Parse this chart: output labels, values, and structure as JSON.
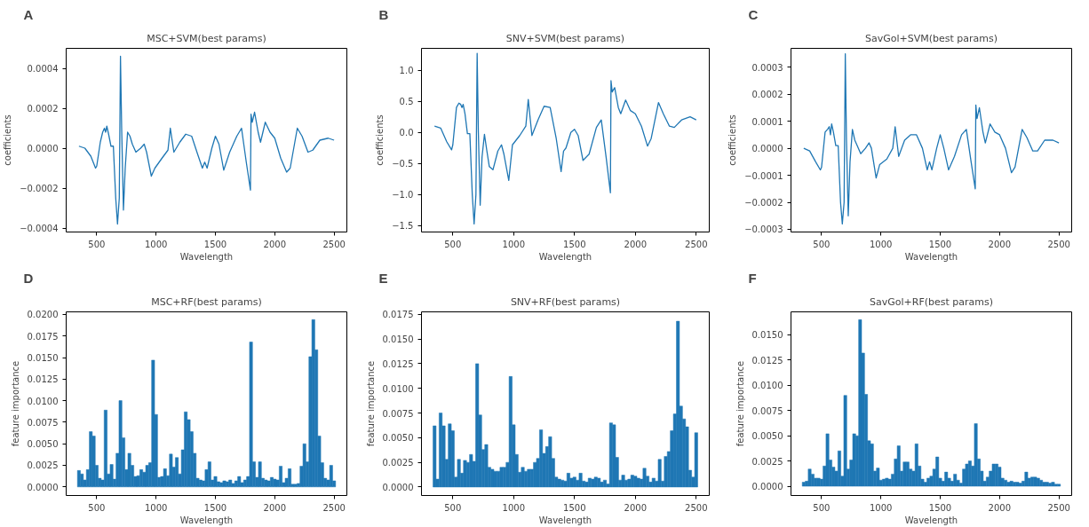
{
  "chart_data": [
    {
      "type": "line",
      "title": "MSC+SVM(best params)",
      "xlabel": "Wavelength",
      "ylabel": "coefficients",
      "annotations": [
        "A"
      ],
      "grid": false,
      "xlim": [
        242.5,
        2607.5
      ],
      "xticks": [
        500,
        1000,
        1500,
        2000,
        2500
      ],
      "ylim": [
        -0.00042,
        0.0005
      ],
      "yticks": [
        {
          "value": -0.0004,
          "label": "−0.0004"
        },
        {
          "value": -0.0002,
          "label": "−0.0002"
        },
        {
          "value": 0,
          "label": "0.0000"
        },
        {
          "value": 0.0002,
          "label": "0.0002"
        },
        {
          "value": 0.0004,
          "label": "0.0004"
        }
      ],
      "x": [
        350,
        400,
        450,
        490,
        500,
        530,
        550,
        565,
        575,
        585,
        600,
        620,
        640,
        660,
        675,
        690,
        700,
        710,
        725,
        740,
        760,
        780,
        800,
        830,
        870,
        900,
        920,
        960,
        990,
        1050,
        1100,
        1120,
        1150,
        1200,
        1250,
        1300,
        1350,
        1390,
        1410,
        1430,
        1470,
        1500,
        1530,
        1570,
        1620,
        1680,
        1720,
        1760,
        1795,
        1800,
        1810,
        1830,
        1860,
        1880,
        1920,
        1960,
        2000,
        2050,
        2100,
        2130,
        2190,
        2230,
        2280,
        2320,
        2380,
        2450,
        2500
      ],
      "series": [
        {
          "color": "#1f77b4",
          "values": [
            1e-05,
            0.0,
            -4e-05,
            -0.0001,
            -9e-05,
            3e-05,
            8e-05,
            0.0001,
            8e-05,
            0.00011,
            7e-05,
            1e-05,
            1e-05,
            -0.00025,
            -0.00038,
            -0.00025,
            0.00046,
            0.0001,
            -0.00031,
            -0.0001,
            8e-05,
            6e-05,
            2e-05,
            -2e-05,
            0.0,
            2e-05,
            -2e-05,
            -0.00014,
            -0.0001,
            -5e-05,
            -1e-05,
            0.0001,
            -2e-05,
            3e-05,
            7e-05,
            6e-05,
            -3e-05,
            -0.0001,
            -7e-05,
            -0.0001,
            0.0,
            6e-05,
            2e-05,
            -0.00011,
            -2e-05,
            6e-05,
            0.0001,
            -7e-05,
            -0.00021,
            0.00017,
            0.00013,
            0.00018,
            8e-05,
            3e-05,
            0.00013,
            8e-05,
            5e-05,
            -5e-05,
            -0.00012,
            -0.0001,
            0.0001,
            6e-05,
            -2e-05,
            -1e-05,
            4e-05,
            5e-05,
            4e-05
          ]
        }
      ]
    },
    {
      "type": "line",
      "title": "SNV+SVM(best params)",
      "xlabel": "Wavelength",
      "ylabel": "coefficients",
      "annotations": [
        "B"
      ],
      "grid": false,
      "xlim": [
        242.5,
        2607.5
      ],
      "xticks": [
        500,
        1000,
        1500,
        2000,
        2500
      ],
      "ylim": [
        -1.6,
        1.35
      ],
      "yticks": [
        {
          "value": -1.5,
          "label": "−1.5"
        },
        {
          "value": -1.0,
          "label": "−1.0"
        },
        {
          "value": -0.5,
          "label": "−0.5"
        },
        {
          "value": 0,
          "label": "0.0"
        },
        {
          "value": 0.5,
          "label": "0.5"
        },
        {
          "value": 1.0,
          "label": "1.0"
        }
      ],
      "x": [
        350,
        400,
        450,
        490,
        500,
        530,
        550,
        565,
        575,
        585,
        600,
        620,
        640,
        660,
        675,
        690,
        700,
        710,
        725,
        740,
        760,
        780,
        800,
        830,
        870,
        900,
        920,
        960,
        990,
        1050,
        1100,
        1120,
        1150,
        1200,
        1250,
        1300,
        1350,
        1390,
        1410,
        1430,
        1470,
        1500,
        1530,
        1570,
        1620,
        1680,
        1720,
        1760,
        1795,
        1800,
        1810,
        1830,
        1860,
        1880,
        1920,
        1960,
        2000,
        2050,
        2100,
        2130,
        2190,
        2230,
        2280,
        2320,
        2380,
        2450,
        2500
      ],
      "series": [
        {
          "color": "#1f77b4",
          "values": [
            0.1,
            0.07,
            -0.15,
            -0.28,
            -0.2,
            0.4,
            0.47,
            0.45,
            0.4,
            0.45,
            0.3,
            -0.02,
            -0.02,
            -1.0,
            -1.47,
            -1.0,
            1.27,
            0.0,
            -1.17,
            -0.4,
            -0.03,
            -0.3,
            -0.55,
            -0.6,
            -0.3,
            -0.2,
            -0.35,
            -0.77,
            -0.2,
            -0.05,
            0.1,
            0.53,
            -0.05,
            0.2,
            0.42,
            0.4,
            -0.1,
            -0.63,
            -0.3,
            -0.25,
            0.0,
            0.05,
            -0.05,
            -0.45,
            -0.35,
            0.08,
            0.2,
            -0.4,
            -0.97,
            0.83,
            0.65,
            0.72,
            0.4,
            0.3,
            0.52,
            0.35,
            0.3,
            0.1,
            -0.22,
            -0.1,
            0.48,
            0.3,
            0.1,
            0.08,
            0.2,
            0.25,
            0.2
          ]
        }
      ]
    },
    {
      "type": "line",
      "title": "SavGol+SVM(best params)",
      "xlabel": "Wavelength",
      "ylabel": "coefficients",
      "annotations": [
        "C"
      ],
      "grid": false,
      "xlim": [
        242.5,
        2607.5
      ],
      "xticks": [
        500,
        1000,
        1500,
        2000,
        2500
      ],
      "ylim": [
        -0.00031,
        0.00037
      ],
      "yticks": [
        {
          "value": -0.0003,
          "label": "−0.0003"
        },
        {
          "value": -0.0002,
          "label": "−0.0002"
        },
        {
          "value": -0.0001,
          "label": "−0.0001"
        },
        {
          "value": 0,
          "label": "0.0000"
        },
        {
          "value": 0.0001,
          "label": "0.0001"
        },
        {
          "value": 0.0002,
          "label": "0.0002"
        },
        {
          "value": 0.0003,
          "label": "0.0003"
        }
      ],
      "x": [
        350,
        400,
        450,
        490,
        500,
        530,
        550,
        565,
        575,
        585,
        600,
        620,
        640,
        660,
        675,
        690,
        700,
        710,
        725,
        740,
        760,
        780,
        800,
        830,
        870,
        900,
        920,
        960,
        990,
        1050,
        1100,
        1120,
        1150,
        1200,
        1250,
        1300,
        1350,
        1390,
        1410,
        1430,
        1470,
        1500,
        1530,
        1570,
        1620,
        1680,
        1720,
        1760,
        1795,
        1800,
        1810,
        1830,
        1860,
        1880,
        1920,
        1960,
        2000,
        2050,
        2100,
        2130,
        2190,
        2230,
        2280,
        2320,
        2380,
        2450,
        2500
      ],
      "series": [
        {
          "color": "#1f77b4",
          "values": [
            0.0,
            -1e-05,
            -5e-05,
            -8e-05,
            -7e-05,
            6e-05,
            7e-05,
            8e-05,
            5e-05,
            9e-05,
            6e-05,
            1e-05,
            1e-05,
            -0.0002,
            -0.00028,
            -0.0002,
            0.00035,
            3e-05,
            -0.00025,
            -5e-05,
            7e-05,
            3e-05,
            1e-05,
            -2e-05,
            0.0,
            2e-05,
            0.0,
            -0.00011,
            -6e-05,
            -4e-05,
            0.0,
            8e-05,
            -3e-05,
            3e-05,
            5e-05,
            5e-05,
            0.0,
            -8e-05,
            -5e-05,
            -8e-05,
            0.0,
            5e-05,
            0.0,
            -8e-05,
            -3e-05,
            5e-05,
            7e-05,
            -5e-05,
            -0.00015,
            0.00016,
            0.00011,
            0.00015,
            6e-05,
            2e-05,
            9e-05,
            6e-05,
            5e-05,
            0.0,
            -9e-05,
            -7e-05,
            7e-05,
            4e-05,
            -1e-05,
            -1e-05,
            3e-05,
            3e-05,
            2e-05
          ]
        }
      ]
    },
    {
      "type": "bar",
      "title": "MSC+RF(best params)",
      "xlabel": "Wavelength",
      "ylabel": "feature importance",
      "annotations": [
        "D"
      ],
      "grid": false,
      "xlim": [
        242.5,
        2607.5
      ],
      "xticks": [
        500,
        1000,
        1500,
        2000,
        2500
      ],
      "ylim": [
        -0.001,
        0.0203
      ],
      "yticks": [
        {
          "value": 0,
          "label": "0.0000"
        },
        {
          "value": 0.0025,
          "label": "0.0025"
        },
        {
          "value": 0.005,
          "label": "0.0050"
        },
        {
          "value": 0.0075,
          "label": "0.0075"
        },
        {
          "value": 0.01,
          "label": "0.0100"
        },
        {
          "value": 0.0125,
          "label": "0.0125"
        },
        {
          "value": 0.015,
          "label": "0.0150"
        },
        {
          "value": 0.0175,
          "label": "0.0175"
        },
        {
          "value": 0.02,
          "label": "0.0200"
        }
      ],
      "x": [
        350,
        375,
        400,
        425,
        450,
        475,
        500,
        525,
        550,
        575,
        600,
        625,
        650,
        675,
        700,
        725,
        750,
        775,
        800,
        825,
        850,
        875,
        900,
        925,
        950,
        975,
        1000,
        1025,
        1050,
        1075,
        1100,
        1125,
        1150,
        1175,
        1200,
        1225,
        1250,
        1275,
        1300,
        1325,
        1350,
        1375,
        1400,
        1425,
        1450,
        1475,
        1500,
        1525,
        1550,
        1575,
        1600,
        1625,
        1650,
        1675,
        1700,
        1725,
        1750,
        1775,
        1800,
        1825,
        1850,
        1875,
        1900,
        1925,
        1950,
        1975,
        2000,
        2025,
        2050,
        2075,
        2100,
        2125,
        2150,
        2175,
        2200,
        2225,
        2250,
        2275,
        2300,
        2325,
        2350,
        2375,
        2400,
        2425,
        2450,
        2475,
        2500
      ],
      "series": [
        {
          "color": "#1f77b4",
          "values": [
            0.0019,
            0.0015,
            0.0008,
            0.002,
            0.0064,
            0.0059,
            0.0025,
            0.001,
            0.0008,
            0.0089,
            0.0015,
            0.0026,
            0.0009,
            0.0039,
            0.01,
            0.0057,
            0.002,
            0.0039,
            0.0025,
            0.0012,
            0.0013,
            0.002,
            0.0017,
            0.0025,
            0.0028,
            0.0147,
            0.0084,
            0.0011,
            0.0012,
            0.0021,
            0.0013,
            0.0038,
            0.0023,
            0.0034,
            0.0015,
            0.0043,
            0.0087,
            0.0078,
            0.0064,
            0.0039,
            0.001,
            0.0008,
            0.0007,
            0.002,
            0.0029,
            0.0008,
            0.0012,
            0.0006,
            0.0005,
            0.0007,
            0.0006,
            0.0008,
            0.0004,
            0.0007,
            0.0012,
            0.0005,
            0.0008,
            0.0012,
            0.0168,
            0.0029,
            0.0011,
            0.0029,
            0.001,
            0.0008,
            0.0007,
            0.0011,
            0.0009,
            0.0008,
            0.0024,
            0.0005,
            0.001,
            0.0021,
            0.0003,
            0.0003,
            0.0004,
            0.0024,
            0.005,
            0.0029,
            0.0151,
            0.0194,
            0.0159,
            0.0059,
            0.0028,
            0.001,
            0.0008,
            0.0025,
            0.0007
          ]
        }
      ]
    },
    {
      "type": "bar",
      "title": "SNV+RF(best params)",
      "xlabel": "Wavelength",
      "ylabel": "feature importance",
      "annotations": [
        "E"
      ],
      "grid": false,
      "xlim": [
        242.5,
        2607.5
      ],
      "xticks": [
        500,
        1000,
        1500,
        2000,
        2500
      ],
      "ylim": [
        -0.00086,
        0.01775
      ],
      "yticks": [
        {
          "value": 0,
          "label": "0.0000"
        },
        {
          "value": 0.0025,
          "label": "0.0025"
        },
        {
          "value": 0.005,
          "label": "0.0050"
        },
        {
          "value": 0.0075,
          "label": "0.0075"
        },
        {
          "value": 0.01,
          "label": "0.0100"
        },
        {
          "value": 0.0125,
          "label": "0.0125"
        },
        {
          "value": 0.015,
          "label": "0.0150"
        },
        {
          "value": 0.0175,
          "label": "0.0175"
        }
      ],
      "x": [
        350,
        375,
        400,
        425,
        450,
        475,
        500,
        525,
        550,
        575,
        600,
        625,
        650,
        675,
        700,
        725,
        750,
        775,
        800,
        825,
        850,
        875,
        900,
        925,
        950,
        975,
        1000,
        1025,
        1050,
        1075,
        1100,
        1125,
        1150,
        1175,
        1200,
        1225,
        1250,
        1275,
        1300,
        1325,
        1350,
        1375,
        1400,
        1425,
        1450,
        1475,
        1500,
        1525,
        1550,
        1575,
        1600,
        1625,
        1650,
        1675,
        1700,
        1725,
        1750,
        1775,
        1800,
        1825,
        1850,
        1875,
        1900,
        1925,
        1950,
        1975,
        2000,
        2025,
        2050,
        2075,
        2100,
        2125,
        2150,
        2175,
        2200,
        2225,
        2250,
        2275,
        2300,
        2325,
        2350,
        2375,
        2400,
        2425,
        2450,
        2475,
        2500
      ],
      "series": [
        {
          "color": "#1f77b4",
          "values": [
            0.0062,
            0.0008,
            0.0075,
            0.0062,
            0.0028,
            0.0064,
            0.0057,
            0.001,
            0.0028,
            0.0014,
            0.0027,
            0.0025,
            0.0033,
            0.0026,
            0.0125,
            0.0073,
            0.0038,
            0.0043,
            0.002,
            0.0018,
            0.0016,
            0.0016,
            0.002,
            0.002,
            0.0025,
            0.0112,
            0.0063,
            0.0033,
            0.0015,
            0.002,
            0.0016,
            0.0018,
            0.0018,
            0.0025,
            0.0029,
            0.0058,
            0.0034,
            0.0041,
            0.0051,
            0.0029,
            0.001,
            0.0008,
            0.0007,
            0.0006,
            0.0014,
            0.0009,
            0.001,
            0.0007,
            0.0014,
            0.0006,
            0.0005,
            0.0009,
            0.0008,
            0.001,
            0.0009,
            0.0005,
            0.0007,
            0.0003,
            0.0065,
            0.0063,
            0.003,
            0.0007,
            0.0012,
            0.0007,
            0.0008,
            0.0012,
            0.0011,
            0.0009,
            0.0008,
            0.0019,
            0.0011,
            0.0005,
            0.0009,
            0.0006,
            0.0028,
            0.0006,
            0.0031,
            0.0036,
            0.0057,
            0.0074,
            0.0168,
            0.0082,
            0.0069,
            0.0061,
            0.0017,
            0.001,
            0.0055
          ]
        }
      ]
    },
    {
      "type": "bar",
      "title": "SavGol+RF(best params)",
      "xlabel": "Wavelength",
      "ylabel": "feature importance",
      "annotations": [
        "F"
      ],
      "grid": false,
      "xlim": [
        242.5,
        2607.5
      ],
      "xticks": [
        500,
        1000,
        1500,
        2000,
        2500
      ],
      "ylim": [
        -0.00092,
        0.01728
      ],
      "yticks": [
        {
          "value": 0,
          "label": "0.0000"
        },
        {
          "value": 0.0025,
          "label": "0.0025"
        },
        {
          "value": 0.005,
          "label": "0.0050"
        },
        {
          "value": 0.0075,
          "label": "0.0075"
        },
        {
          "value": 0.01,
          "label": "0.0100"
        },
        {
          "value": 0.0125,
          "label": "0.0125"
        },
        {
          "value": 0.015,
          "label": "0.0150"
        }
      ],
      "x": [
        350,
        375,
        400,
        425,
        450,
        475,
        500,
        525,
        550,
        575,
        600,
        625,
        650,
        675,
        700,
        725,
        750,
        775,
        800,
        825,
        850,
        875,
        900,
        925,
        950,
        975,
        1000,
        1025,
        1050,
        1075,
        1100,
        1125,
        1150,
        1175,
        1200,
        1225,
        1250,
        1275,
        1300,
        1325,
        1350,
        1375,
        1400,
        1425,
        1450,
        1475,
        1500,
        1525,
        1550,
        1575,
        1600,
        1625,
        1650,
        1675,
        1700,
        1725,
        1750,
        1775,
        1800,
        1825,
        1850,
        1875,
        1900,
        1925,
        1950,
        1975,
        2000,
        2025,
        2050,
        2075,
        2100,
        2125,
        2150,
        2175,
        2200,
        2225,
        2250,
        2275,
        2300,
        2325,
        2350,
        2375,
        2400,
        2425,
        2450,
        2475,
        2500
      ],
      "series": [
        {
          "color": "#1f77b4",
          "values": [
            0.0004,
            0.0005,
            0.0017,
            0.0012,
            0.0008,
            0.0008,
            0.0007,
            0.002,
            0.0052,
            0.0026,
            0.0019,
            0.0015,
            0.0035,
            0.001,
            0.009,
            0.0017,
            0.0026,
            0.0052,
            0.005,
            0.0165,
            0.0132,
            0.0091,
            0.0045,
            0.0042,
            0.0015,
            0.0018,
            0.0006,
            0.0007,
            0.0008,
            0.0007,
            0.0012,
            0.0027,
            0.004,
            0.0015,
            0.0024,
            0.0024,
            0.0017,
            0.0015,
            0.0042,
            0.002,
            0.0007,
            0.0004,
            0.0008,
            0.001,
            0.0017,
            0.0029,
            0.0008,
            0.0005,
            0.0014,
            0.0008,
            0.0005,
            0.0012,
            0.0006,
            0.0003,
            0.0017,
            0.0022,
            0.0025,
            0.002,
            0.0062,
            0.0027,
            0.0015,
            0.0005,
            0.0009,
            0.0015,
            0.0022,
            0.0022,
            0.0019,
            0.0008,
            0.0006,
            0.0004,
            0.0005,
            0.0004,
            0.0004,
            0.0003,
            0.0005,
            0.0014,
            0.0008,
            0.0009,
            0.0009,
            0.0008,
            0.0006,
            0.0004,
            0.0004,
            0.0003,
            0.0004,
            0.0002,
            0.0002
          ]
        }
      ]
    }
  ]
}
